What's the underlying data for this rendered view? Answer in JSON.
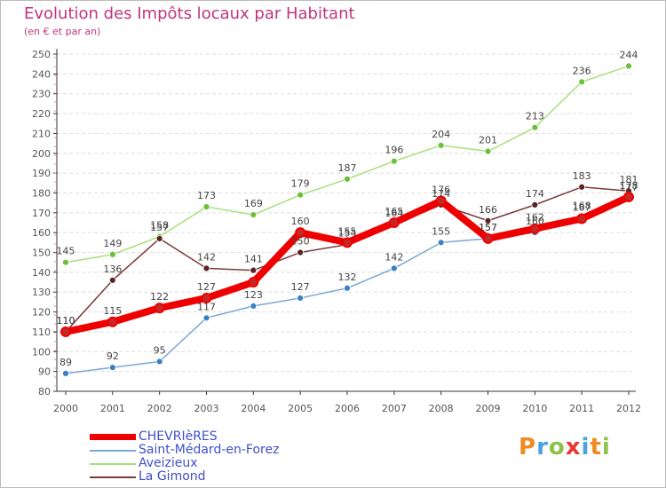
{
  "title": "Evolution des Impôts locaux par Habitant",
  "subtitle": "(en € et par an)",
  "logo": [
    "P",
    "r",
    "o",
    "x",
    "i",
    "t",
    "i"
  ],
  "logo_colors": [
    "#f08a24",
    "#4aa3df",
    "#8bc34a",
    "#e53935",
    "#4aa3df",
    "#f08a24",
    "#8bc34a"
  ],
  "chart_data": {
    "type": "line",
    "x": [
      "2000",
      "2001",
      "2002",
      "2003",
      "2004",
      "2005",
      "2006",
      "2007",
      "2008",
      "2009",
      "2010",
      "2011",
      "2012"
    ],
    "y_ticks": [
      80,
      90,
      100,
      110,
      120,
      130,
      140,
      150,
      160,
      170,
      180,
      190,
      200,
      210,
      220,
      230,
      240,
      250
    ],
    "ylim": [
      80,
      250
    ],
    "grid": "horizontal",
    "legend_position": "bottom-left",
    "series": [
      {
        "name": "CHEVRIèRES",
        "values": [
          110,
          115,
          122,
          127,
          135,
          160,
          155,
          165,
          176,
          157,
          162,
          167,
          178
        ],
        "color": "#ee0000",
        "marker": "#c62828",
        "width": 8,
        "labels": [
          "110",
          "115",
          "122",
          "127",
          "",
          "160",
          "155",
          "165",
          "176",
          "157",
          "162",
          "167",
          "178"
        ]
      },
      {
        "name": "Saint-Médard-en-Forez",
        "values": [
          89,
          92,
          95,
          117,
          123,
          127,
          132,
          142,
          155,
          157,
          160,
          168,
          177
        ],
        "color": "#79a7d6",
        "marker": "#3b7fc4",
        "width": 1.5,
        "labels": [
          "89",
          "92",
          "95",
          "117",
          "123",
          "127",
          "132",
          "142",
          "155",
          "157",
          "160",
          "168",
          "177"
        ]
      },
      {
        "name": "Aveizieux",
        "values": [
          145,
          149,
          158,
          173,
          169,
          179,
          187,
          196,
          204,
          201,
          213,
          236,
          244
        ],
        "color": "#a6e07a",
        "marker": "#6cbf3a",
        "width": 1.5,
        "labels": [
          "145",
          "149",
          "158",
          "173",
          "169",
          "179",
          "187",
          "196",
          "204",
          "201",
          "213",
          "236",
          "244"
        ]
      },
      {
        "name": "La Gimond",
        "values": [
          110,
          136,
          157,
          142,
          141,
          150,
          154,
          164,
          174,
          166,
          174,
          183,
          181
        ],
        "color": "#7b3b3b",
        "marker": "#5a2222",
        "width": 1.5,
        "labels": [
          "110",
          "136",
          "157",
          "142",
          "141",
          "150",
          "154",
          "164",
          "174",
          "166",
          "174",
          "183",
          "181"
        ]
      }
    ]
  }
}
